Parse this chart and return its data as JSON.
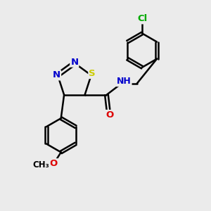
{
  "background_color": "#ebebeb",
  "bond_color": "#000000",
  "bond_width": 1.8,
  "atom_colors": {
    "N": "#0000cc",
    "S": "#cccc00",
    "O": "#dd0000",
    "Cl": "#00aa00",
    "C": "#000000",
    "H": "#666666"
  },
  "font_size": 9.5,
  "figsize": [
    3.0,
    3.0
  ],
  "dpi": 100,
  "xlim": [
    0,
    10
  ],
  "ylim": [
    0,
    10
  ]
}
